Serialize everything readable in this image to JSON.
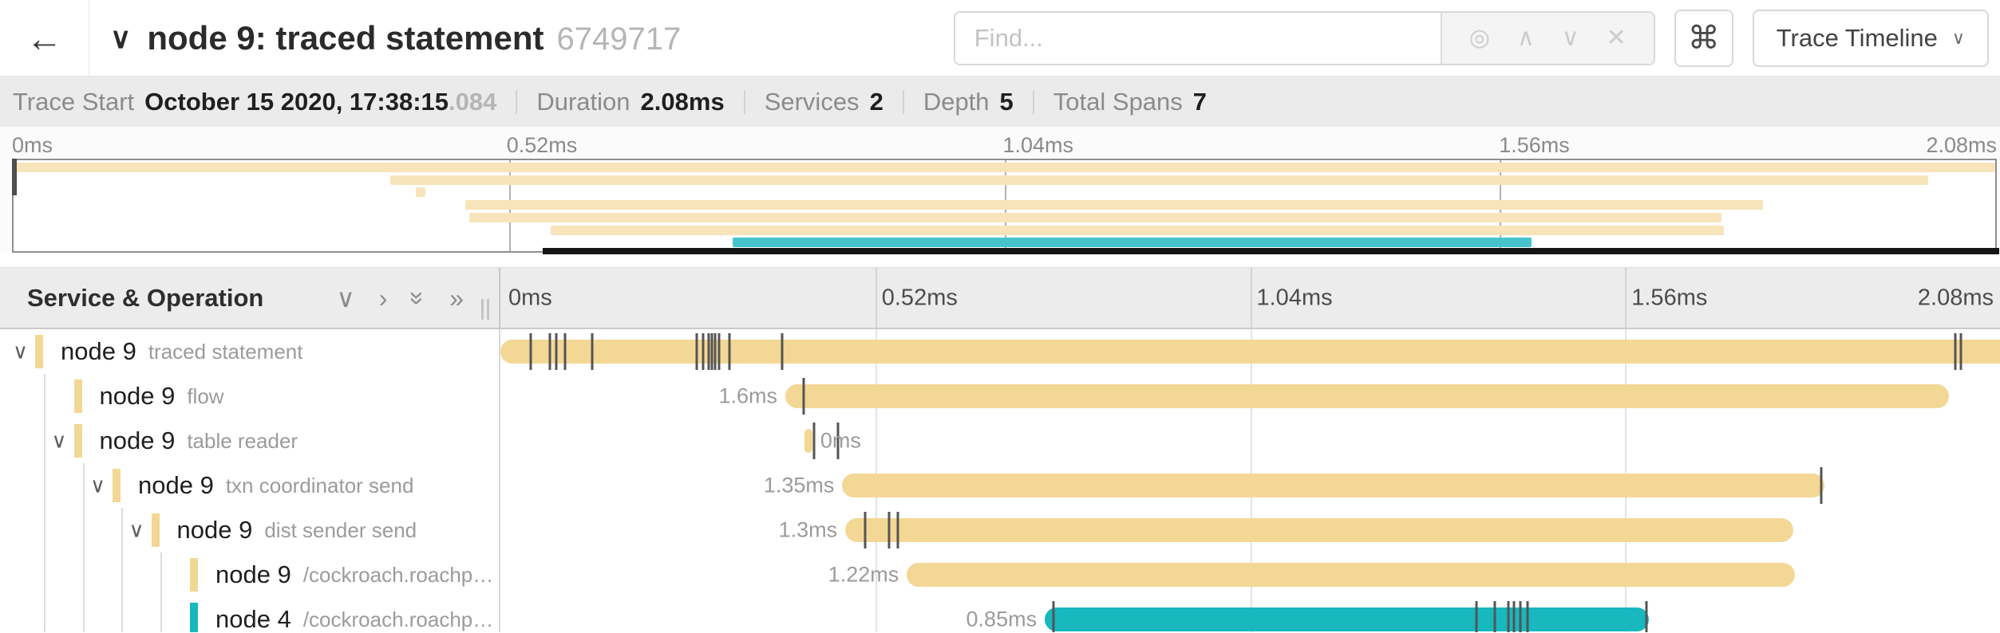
{
  "header": {
    "back_glyph": "←",
    "collapse_chevron": "∨",
    "title": "node 9: traced statement",
    "trace_id_short": "6749717",
    "find_placeholder": "Find...",
    "shortcut_key": "⌘",
    "view_selector": "Trace Timeline",
    "view_chevron": "∨"
  },
  "icons": {
    "target": "◎",
    "chevron_up": "∧",
    "chevron_down": "∨",
    "close": "✕",
    "collapse_one": "∨",
    "expand_one": "›",
    "collapse_all": "»",
    "expand_all": "»",
    "tree_chevron": "∨"
  },
  "summary": {
    "items": [
      {
        "label": "Trace Start",
        "value": "October 15 2020, 17:38:15",
        "suffix": ".084"
      },
      {
        "label": "Duration",
        "value": "2.08ms"
      },
      {
        "label": "Services",
        "value": "2"
      },
      {
        "label": "Depth",
        "value": "5"
      },
      {
        "label": "Total Spans",
        "value": "7"
      }
    ]
  },
  "minimap": {
    "ticks": [
      "0ms",
      "0.52ms",
      "1.04ms",
      "1.56ms",
      "2.08ms"
    ],
    "range_bar": {
      "start_pct": 26.7,
      "end_pct": 100
    }
  },
  "panel": {
    "left_title": "Service & Operation",
    "ticks": [
      "0ms",
      "0.52ms",
      "1.04ms",
      "1.56ms",
      "2.08ms"
    ]
  },
  "colors": {
    "tan": "#F3D795",
    "tan_light": "#F8E4BA",
    "teal": "#17B8BE",
    "teal_light": "#45C5CB"
  },
  "spans": [
    {
      "service": "node 9",
      "operation": "traced statement",
      "depth": 0,
      "expandable": true,
      "color": "tan",
      "start_pct": 0,
      "end_pct": 100,
      "duration_label": "",
      "label_side": "none",
      "ticks_pct": [
        2.0,
        3.3,
        3.7,
        4.3,
        6.1,
        13.1,
        13.5,
        13.9,
        14.1,
        14.3,
        14.6,
        15.3,
        18.8,
        97.0,
        97.4
      ]
    },
    {
      "service": "node 9",
      "operation": "flow",
      "depth": 1,
      "expandable": false,
      "color": "tan",
      "start_pct": 19.0,
      "end_pct": 96.6,
      "duration_label": "1.6ms",
      "label_side": "left",
      "ticks_pct": [
        20.2
      ]
    },
    {
      "service": "node 9",
      "operation": "table reader",
      "depth": 1,
      "expandable": true,
      "color": "tan",
      "start_pct": 20.3,
      "end_pct": 20.8,
      "duration_label": "0ms",
      "label_side": "right",
      "ticks_pct": [
        20.9,
        22.5
      ]
    },
    {
      "service": "node 9",
      "operation": "txn coordinator send",
      "depth": 2,
      "expandable": true,
      "color": "tan",
      "start_pct": 22.8,
      "end_pct": 88.3,
      "duration_label": "1.35ms",
      "label_side": "left",
      "ticks_pct": [
        88.1
      ]
    },
    {
      "service": "node 9",
      "operation": "dist sender send",
      "depth": 3,
      "expandable": true,
      "color": "tan",
      "start_pct": 23.0,
      "end_pct": 86.2,
      "duration_label": "1.3ms",
      "label_side": "left",
      "ticks_pct": [
        24.3,
        25.9,
        26.5
      ]
    },
    {
      "service": "node 9",
      "operation": "/cockroach.roachpb.I…",
      "depth": 4,
      "expandable": false,
      "color": "tan",
      "start_pct": 27.1,
      "end_pct": 86.3,
      "duration_label": "1.22ms",
      "label_side": "left",
      "ticks_pct": []
    },
    {
      "service": "node 4",
      "operation": "/cockroach.roachpb.I…",
      "depth": 4,
      "expandable": false,
      "color": "teal",
      "start_pct": 36.3,
      "end_pct": 76.6,
      "duration_label": "0.85ms",
      "label_side": "left",
      "ticks_pct": [
        36.9,
        65.1,
        66.3,
        67.2,
        67.6,
        68.0,
        68.5,
        76.4
      ]
    }
  ]
}
